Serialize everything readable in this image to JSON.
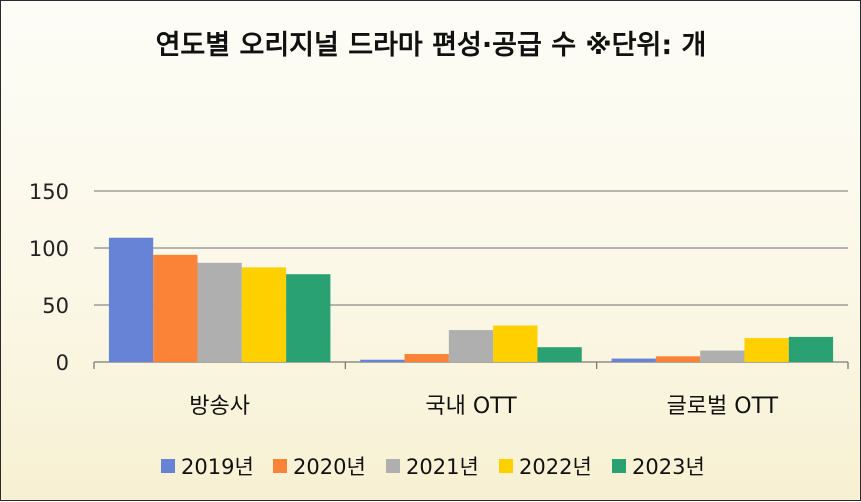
{
  "chart_data": {
    "type": "bar",
    "title": "연도별 오리지널 드라마 편성·공급 수 ※단위: 개",
    "categories": [
      "방송사",
      "국내 OTT",
      "글로벌 OTT"
    ],
    "series": [
      {
        "name": "2019년",
        "color": "#6683d6",
        "values": [
          109,
          2,
          3
        ]
      },
      {
        "name": "2020년",
        "color": "#fb8338",
        "values": [
          94,
          7,
          5
        ]
      },
      {
        "name": "2021년",
        "color": "#afafaf",
        "values": [
          87,
          28,
          10
        ]
      },
      {
        "name": "2022년",
        "color": "#ffd000",
        "values": [
          83,
          32,
          21
        ]
      },
      {
        "name": "2023년",
        "color": "#2aa172",
        "values": [
          77,
          13,
          22
        ]
      }
    ],
    "y_ticks": [
      0,
      50,
      100,
      150
    ],
    "ylim": [
      0,
      150
    ],
    "grid": true,
    "legend_position": "bottom",
    "xlabel": "",
    "ylabel": ""
  }
}
